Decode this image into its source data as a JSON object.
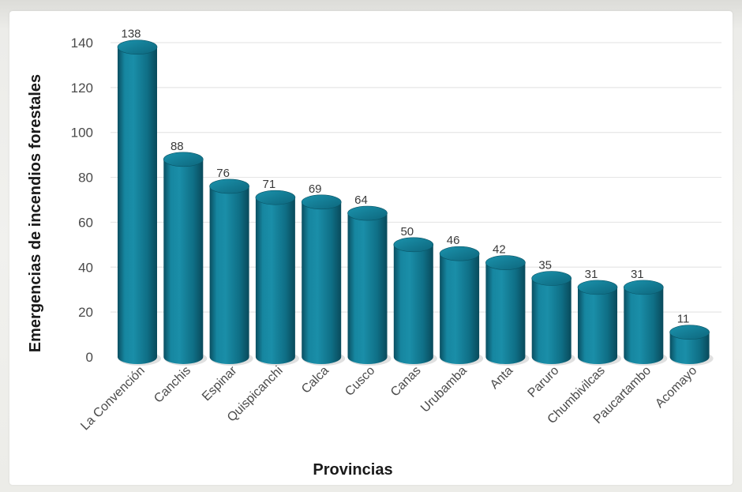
{
  "chart_data": {
    "type": "bar",
    "title": "",
    "xlabel": "Provincias",
    "ylabel": "Emergencias de incendios forestales",
    "ylim": [
      0,
      140
    ],
    "yticks": [
      0,
      20,
      40,
      60,
      80,
      100,
      120,
      140
    ],
    "grid": true,
    "legend": "none",
    "bar_color": "#0f6f86",
    "categories": [
      "La Convención",
      "Canchis",
      "Espinar",
      "Quispicanchi",
      "Calca",
      "Cusco",
      "Canas",
      "Urubamba",
      "Anta",
      "Paruro",
      "Chumbivilcas",
      "Paucartambo",
      "Acomayo"
    ],
    "values": [
      138,
      88,
      76,
      71,
      69,
      64,
      50,
      46,
      42,
      35,
      31,
      31,
      11
    ]
  }
}
